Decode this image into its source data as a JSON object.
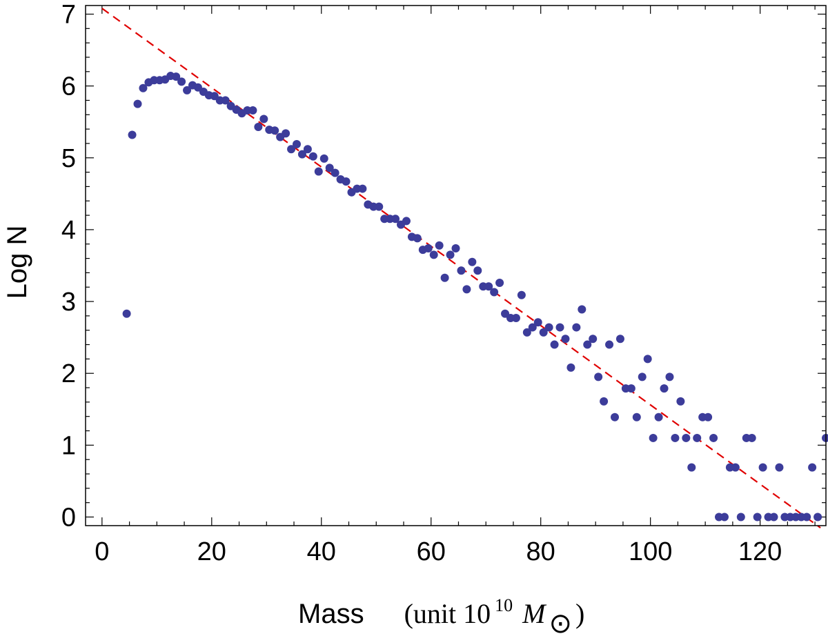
{
  "chart_data": {
    "type": "scatter",
    "title": "",
    "xlabel": {
      "prefix": "Mass",
      "unit_open": "(unit 10",
      "exponent": "10",
      "symbol": "M",
      "subscript": "⊙",
      "close": ")"
    },
    "ylabel": "Log N",
    "xlim": [
      -3,
      132
    ],
    "ylim": [
      -0.12,
      7.12
    ],
    "x_ticks": [
      0,
      20,
      40,
      60,
      80,
      100,
      120
    ],
    "y_ticks": [
      0,
      1,
      2,
      3,
      4,
      5,
      6,
      7
    ],
    "grid": false,
    "colors": {
      "points": "#3c3c9a",
      "fit_line": "#e00000"
    },
    "fit_line": {
      "style": "dashed",
      "x": [
        0,
        131
      ],
      "y": [
        7.08,
        -0.15
      ]
    },
    "series": [
      {
        "points": [
          [
            4.5,
            2.83
          ],
          [
            5.5,
            5.32
          ],
          [
            6.5,
            5.75
          ],
          [
            7.5,
            5.97
          ],
          [
            8.5,
            6.05
          ],
          [
            9.5,
            6.08
          ],
          [
            10.5,
            6.08
          ],
          [
            11.5,
            6.09
          ],
          [
            12.5,
            6.14
          ],
          [
            13.5,
            6.13
          ],
          [
            14.5,
            6.06
          ],
          [
            15.5,
            5.94
          ],
          [
            16.5,
            6.01
          ],
          [
            17.5,
            5.98
          ],
          [
            18.5,
            5.92
          ],
          [
            19.5,
            5.87
          ],
          [
            20.5,
            5.86
          ],
          [
            21.5,
            5.8
          ],
          [
            22.5,
            5.8
          ],
          [
            23.5,
            5.72
          ],
          [
            24.5,
            5.67
          ],
          [
            25.5,
            5.62
          ],
          [
            26.5,
            5.66
          ],
          [
            27.5,
            5.66
          ],
          [
            28.5,
            5.43
          ],
          [
            29.5,
            5.54
          ],
          [
            30.5,
            5.39
          ],
          [
            31.5,
            5.38
          ],
          [
            32.5,
            5.29
          ],
          [
            33.5,
            5.34
          ],
          [
            34.5,
            5.12
          ],
          [
            35.5,
            5.19
          ],
          [
            36.5,
            5.05
          ],
          [
            37.5,
            5.12
          ],
          [
            38.5,
            5.02
          ],
          [
            39.5,
            4.81
          ],
          [
            40.5,
            4.99
          ],
          [
            41.5,
            4.86
          ],
          [
            42.5,
            4.79
          ],
          [
            43.5,
            4.7
          ],
          [
            44.5,
            4.67
          ],
          [
            45.5,
            4.52
          ],
          [
            46.5,
            4.57
          ],
          [
            47.5,
            4.57
          ],
          [
            48.5,
            4.35
          ],
          [
            49.5,
            4.32
          ],
          [
            50.5,
            4.32
          ],
          [
            51.5,
            4.15
          ],
          [
            52.5,
            4.15
          ],
          [
            53.5,
            4.15
          ],
          [
            54.5,
            4.07
          ],
          [
            55.5,
            4.12
          ],
          [
            56.5,
            3.9
          ],
          [
            57.5,
            3.88
          ],
          [
            58.5,
            3.72
          ],
          [
            59.5,
            3.74
          ],
          [
            60.5,
            3.65
          ],
          [
            61.5,
            3.78
          ],
          [
            62.5,
            3.33
          ],
          [
            63.5,
            3.65
          ],
          [
            64.5,
            3.74
          ],
          [
            65.5,
            3.43
          ],
          [
            66.5,
            3.17
          ],
          [
            67.5,
            3.55
          ],
          [
            68.5,
            3.43
          ],
          [
            69.5,
            3.21
          ],
          [
            70.5,
            3.21
          ],
          [
            71.5,
            3.13
          ],
          [
            72.5,
            3.26
          ],
          [
            73.5,
            2.83
          ],
          [
            74.5,
            2.77
          ],
          [
            75.5,
            2.77
          ],
          [
            76.5,
            3.09
          ],
          [
            77.5,
            2.57
          ],
          [
            78.5,
            2.64
          ],
          [
            79.5,
            2.71
          ],
          [
            80.5,
            2.57
          ],
          [
            81.5,
            2.64
          ],
          [
            82.5,
            2.4
          ],
          [
            83.5,
            2.64
          ],
          [
            84.5,
            2.48
          ],
          [
            85.5,
            2.08
          ],
          [
            86.5,
            2.64
          ],
          [
            87.5,
            2.89
          ],
          [
            88.5,
            2.4
          ],
          [
            89.5,
            2.48
          ],
          [
            90.5,
            1.95
          ],
          [
            91.5,
            1.61
          ],
          [
            92.5,
            2.4
          ],
          [
            93.5,
            1.39
          ],
          [
            94.5,
            2.48
          ],
          [
            95.5,
            1.79
          ],
          [
            96.5,
            1.79
          ],
          [
            97.5,
            1.39
          ],
          [
            98.5,
            1.95
          ],
          [
            99.5,
            2.2
          ],
          [
            100.5,
            1.1
          ],
          [
            101.5,
            1.39
          ],
          [
            102.5,
            1.79
          ],
          [
            103.5,
            1.95
          ],
          [
            104.5,
            1.1
          ],
          [
            105.5,
            1.61
          ],
          [
            106.5,
            1.1
          ],
          [
            107.5,
            0.69
          ],
          [
            108.5,
            1.1
          ],
          [
            109.5,
            1.39
          ],
          [
            110.5,
            1.39
          ],
          [
            111.5,
            1.1
          ],
          [
            112.5,
            0.0
          ],
          [
            113.5,
            0.0
          ],
          [
            114.5,
            0.69
          ],
          [
            115.5,
            0.69
          ],
          [
            116.5,
            0.0
          ],
          [
            117.5,
            1.1
          ],
          [
            118.5,
            1.1
          ],
          [
            119.5,
            0.0
          ],
          [
            120.5,
            0.69
          ],
          [
            121.5,
            0.0
          ],
          [
            122.5,
            0.0
          ],
          [
            123.5,
            0.69
          ],
          [
            124.5,
            0.0
          ],
          [
            125.5,
            0.0
          ],
          [
            126.5,
            0.0
          ],
          [
            127.5,
            0.0
          ],
          [
            128.5,
            0.0
          ],
          [
            129.5,
            0.69
          ],
          [
            130.5,
            0.0
          ],
          [
            132,
            1.1
          ]
        ]
      }
    ]
  }
}
